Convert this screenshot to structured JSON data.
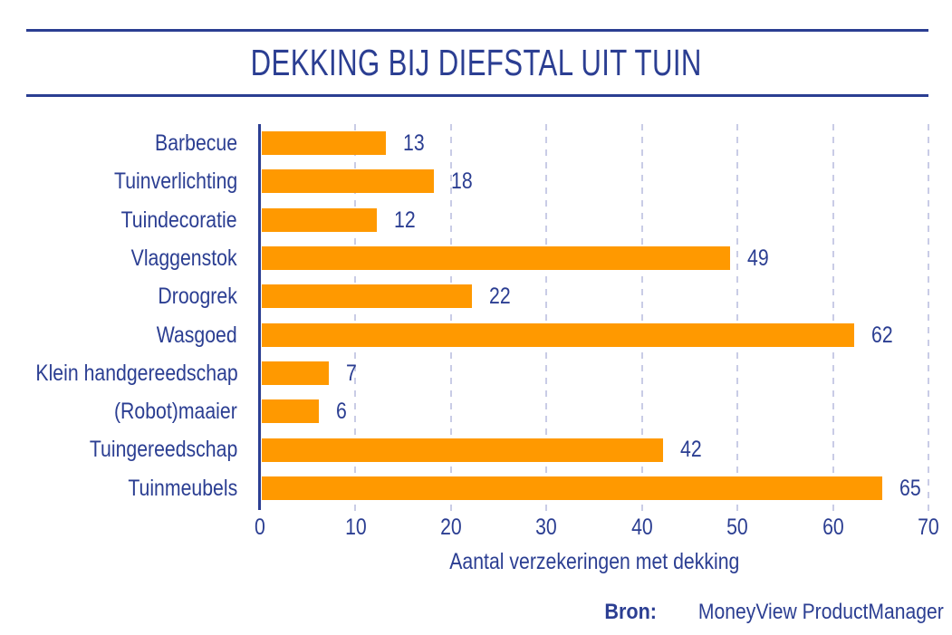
{
  "title": "DEKKING BIJ DIEFSTAL UIT TUIN",
  "chart_data": {
    "type": "bar",
    "orientation": "horizontal",
    "categories": [
      "Barbecue",
      "Tuinverlichting",
      "Tuindecoratie",
      "Vlaggenstok",
      "Droogrek",
      "Wasgoed",
      "Klein handgereedschap",
      "(Robot)maaier",
      "Tuingereedschap",
      "Tuinmeubels"
    ],
    "values": [
      13,
      18,
      12,
      49,
      22,
      62,
      7,
      6,
      42,
      65
    ],
    "value_labels": [
      "13",
      "18",
      "12",
      "49",
      "22",
      "62",
      "7",
      "6",
      "42",
      "65"
    ],
    "title": "DEKKING BIJ DIEFSTAL UIT TUIN",
    "xlabel": "Aantal verzekeringen met dekking",
    "ylabel": "",
    "xlim": [
      0,
      70
    ],
    "xticks": [
      0,
      10,
      20,
      30,
      40,
      50,
      60,
      70
    ],
    "grid": "vertical-dashed",
    "legend": "none"
  },
  "colors": {
    "accent": "#FF9900",
    "navy": "#2B3E92",
    "grid": "#C9CCE6"
  },
  "source": {
    "label": "Bron:",
    "text": "MoneyView ProductManager"
  }
}
